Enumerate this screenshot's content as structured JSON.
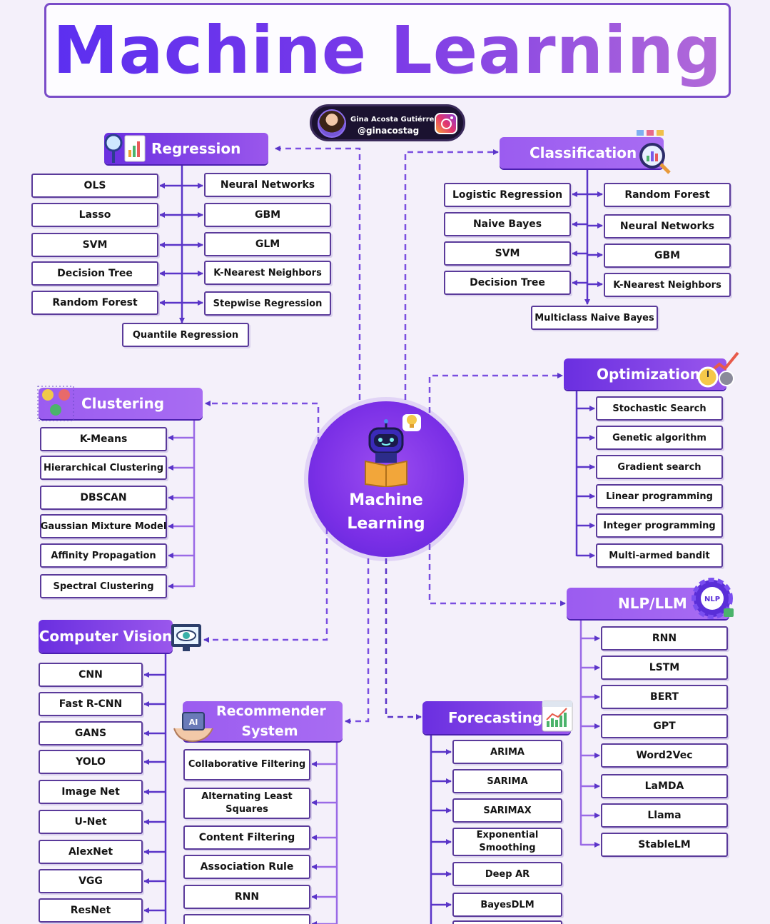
{
  "title": "Machine Learning",
  "author": {
    "name": "Gina Acosta Gutiérrez",
    "handle": "@ginacostag"
  },
  "center": {
    "label": "Machine Learning"
  },
  "regression": {
    "label": "Regression",
    "left": [
      "OLS",
      "Lasso",
      "SVM",
      "Decision Tree",
      "Random Forest"
    ],
    "right": [
      "Neural Networks",
      "GBM",
      "GLM",
      "K-Nearest Neighbors",
      "Stepwise Regression"
    ],
    "bottom": "Quantile Regression"
  },
  "classification": {
    "label": "Classification",
    "left": [
      "Logistic Regression",
      "Naive Bayes",
      "SVM",
      "Decision Tree"
    ],
    "right": [
      "Random Forest",
      "Neural Networks",
      "GBM",
      "K-Nearest Neighbors"
    ],
    "bottom": "Multiclass Naive Bayes"
  },
  "clustering": {
    "label": "Clustering",
    "items": [
      "K-Means",
      "Hierarchical Clustering",
      "DBSCAN",
      "Gaussian Mixture Model",
      "Affinity Propagation",
      "Spectral Clustering"
    ]
  },
  "optimization": {
    "label": "Optimization",
    "items": [
      "Stochastic Search",
      "Genetic algorithm",
      "Gradient search",
      "Linear programming",
      "Integer programming",
      "Multi-armed bandit"
    ]
  },
  "nlp": {
    "label": "NLP/LLM",
    "badge": "NLP",
    "items": [
      "RNN",
      "LSTM",
      "BERT",
      "GPT",
      "Word2Vec",
      "LaMDA",
      "Llama",
      "StableLM"
    ]
  },
  "computer_vision": {
    "label": "Computer Vision",
    "items": [
      "CNN",
      "Fast R-CNN",
      "GANS",
      "YOLO",
      "Image Net",
      "U-Net",
      "AlexNet",
      "VGG",
      "ResNet"
    ]
  },
  "recommender": {
    "label": "Recommender System",
    "badge": "AI",
    "items": [
      "Collaborative Filtering",
      "Alternating Least Squares",
      "Content Filtering",
      "Association Rule",
      "RNN"
    ]
  },
  "forecasting": {
    "label": "Forecasting",
    "items": [
      "ARIMA",
      "SARIMA",
      "SARIMAX",
      "Exponential Smoothing",
      "Deep AR",
      "BayesDLM"
    ]
  },
  "colors": {
    "primary": "#6a2fe0",
    "accent": "#9a57ec",
    "connector": "#6a3fd0",
    "background": "#f4f0fa"
  },
  "icons": [
    "magnifier-chart-icon",
    "analytics-icon",
    "clusters-icon",
    "stopwatch-gear-icon",
    "nlp-gear-icon",
    "monitor-eye-icon",
    "ai-hands-icon",
    "forecast-chart-icon",
    "robot-reading-icon",
    "lightbulb-icon",
    "instagram-icon"
  ]
}
